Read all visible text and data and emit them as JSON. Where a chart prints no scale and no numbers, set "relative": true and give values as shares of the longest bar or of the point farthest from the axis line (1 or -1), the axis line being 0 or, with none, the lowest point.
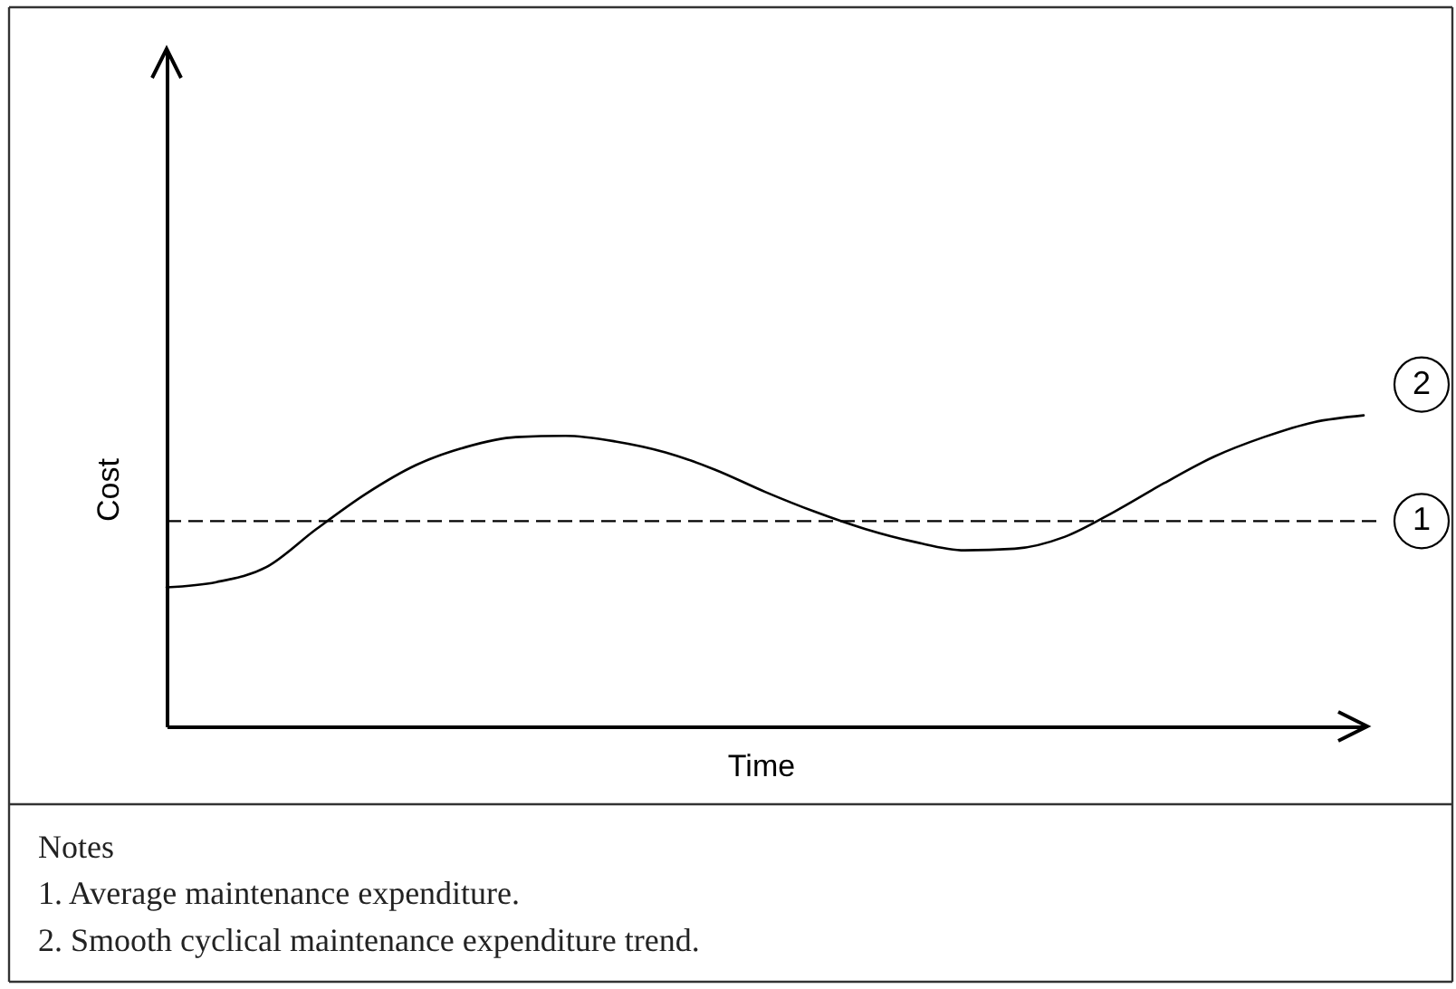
{
  "chart_data": {
    "type": "line",
    "relative": true,
    "xlabel": "Time",
    "ylabel": "Cost",
    "categories": [
      null,
      null,
      null,
      null,
      null,
      null,
      null,
      null,
      null,
      null,
      null,
      null,
      null,
      null,
      null,
      null,
      null,
      null,
      null,
      null,
      null,
      null,
      null,
      null,
      null
    ],
    "series": [
      {
        "name": "2",
        "color": "#000000",
        "values": [
          0.447,
          0.464,
          0.512,
          0.634,
          0.748,
          0.84,
          0.898,
          0.93,
          0.934,
          0.916,
          0.881,
          0.825,
          0.754,
          0.69,
          0.635,
          0.593,
          0.566,
          0.571,
          0.609,
          0.69,
          0.782,
          0.867,
          0.93,
          0.978,
          1.0
        ]
      }
    ],
    "ref_lines": [
      {
        "axis": "y",
        "value": 0.66,
        "label": "1",
        "color": "#000000",
        "line_style": "dashed"
      }
    ],
    "annotations": [
      "Notes",
      "1. Average maintenance expenditure.",
      "2. Smooth cyclical maintenance expenditure trend."
    ],
    "grid": false
  }
}
